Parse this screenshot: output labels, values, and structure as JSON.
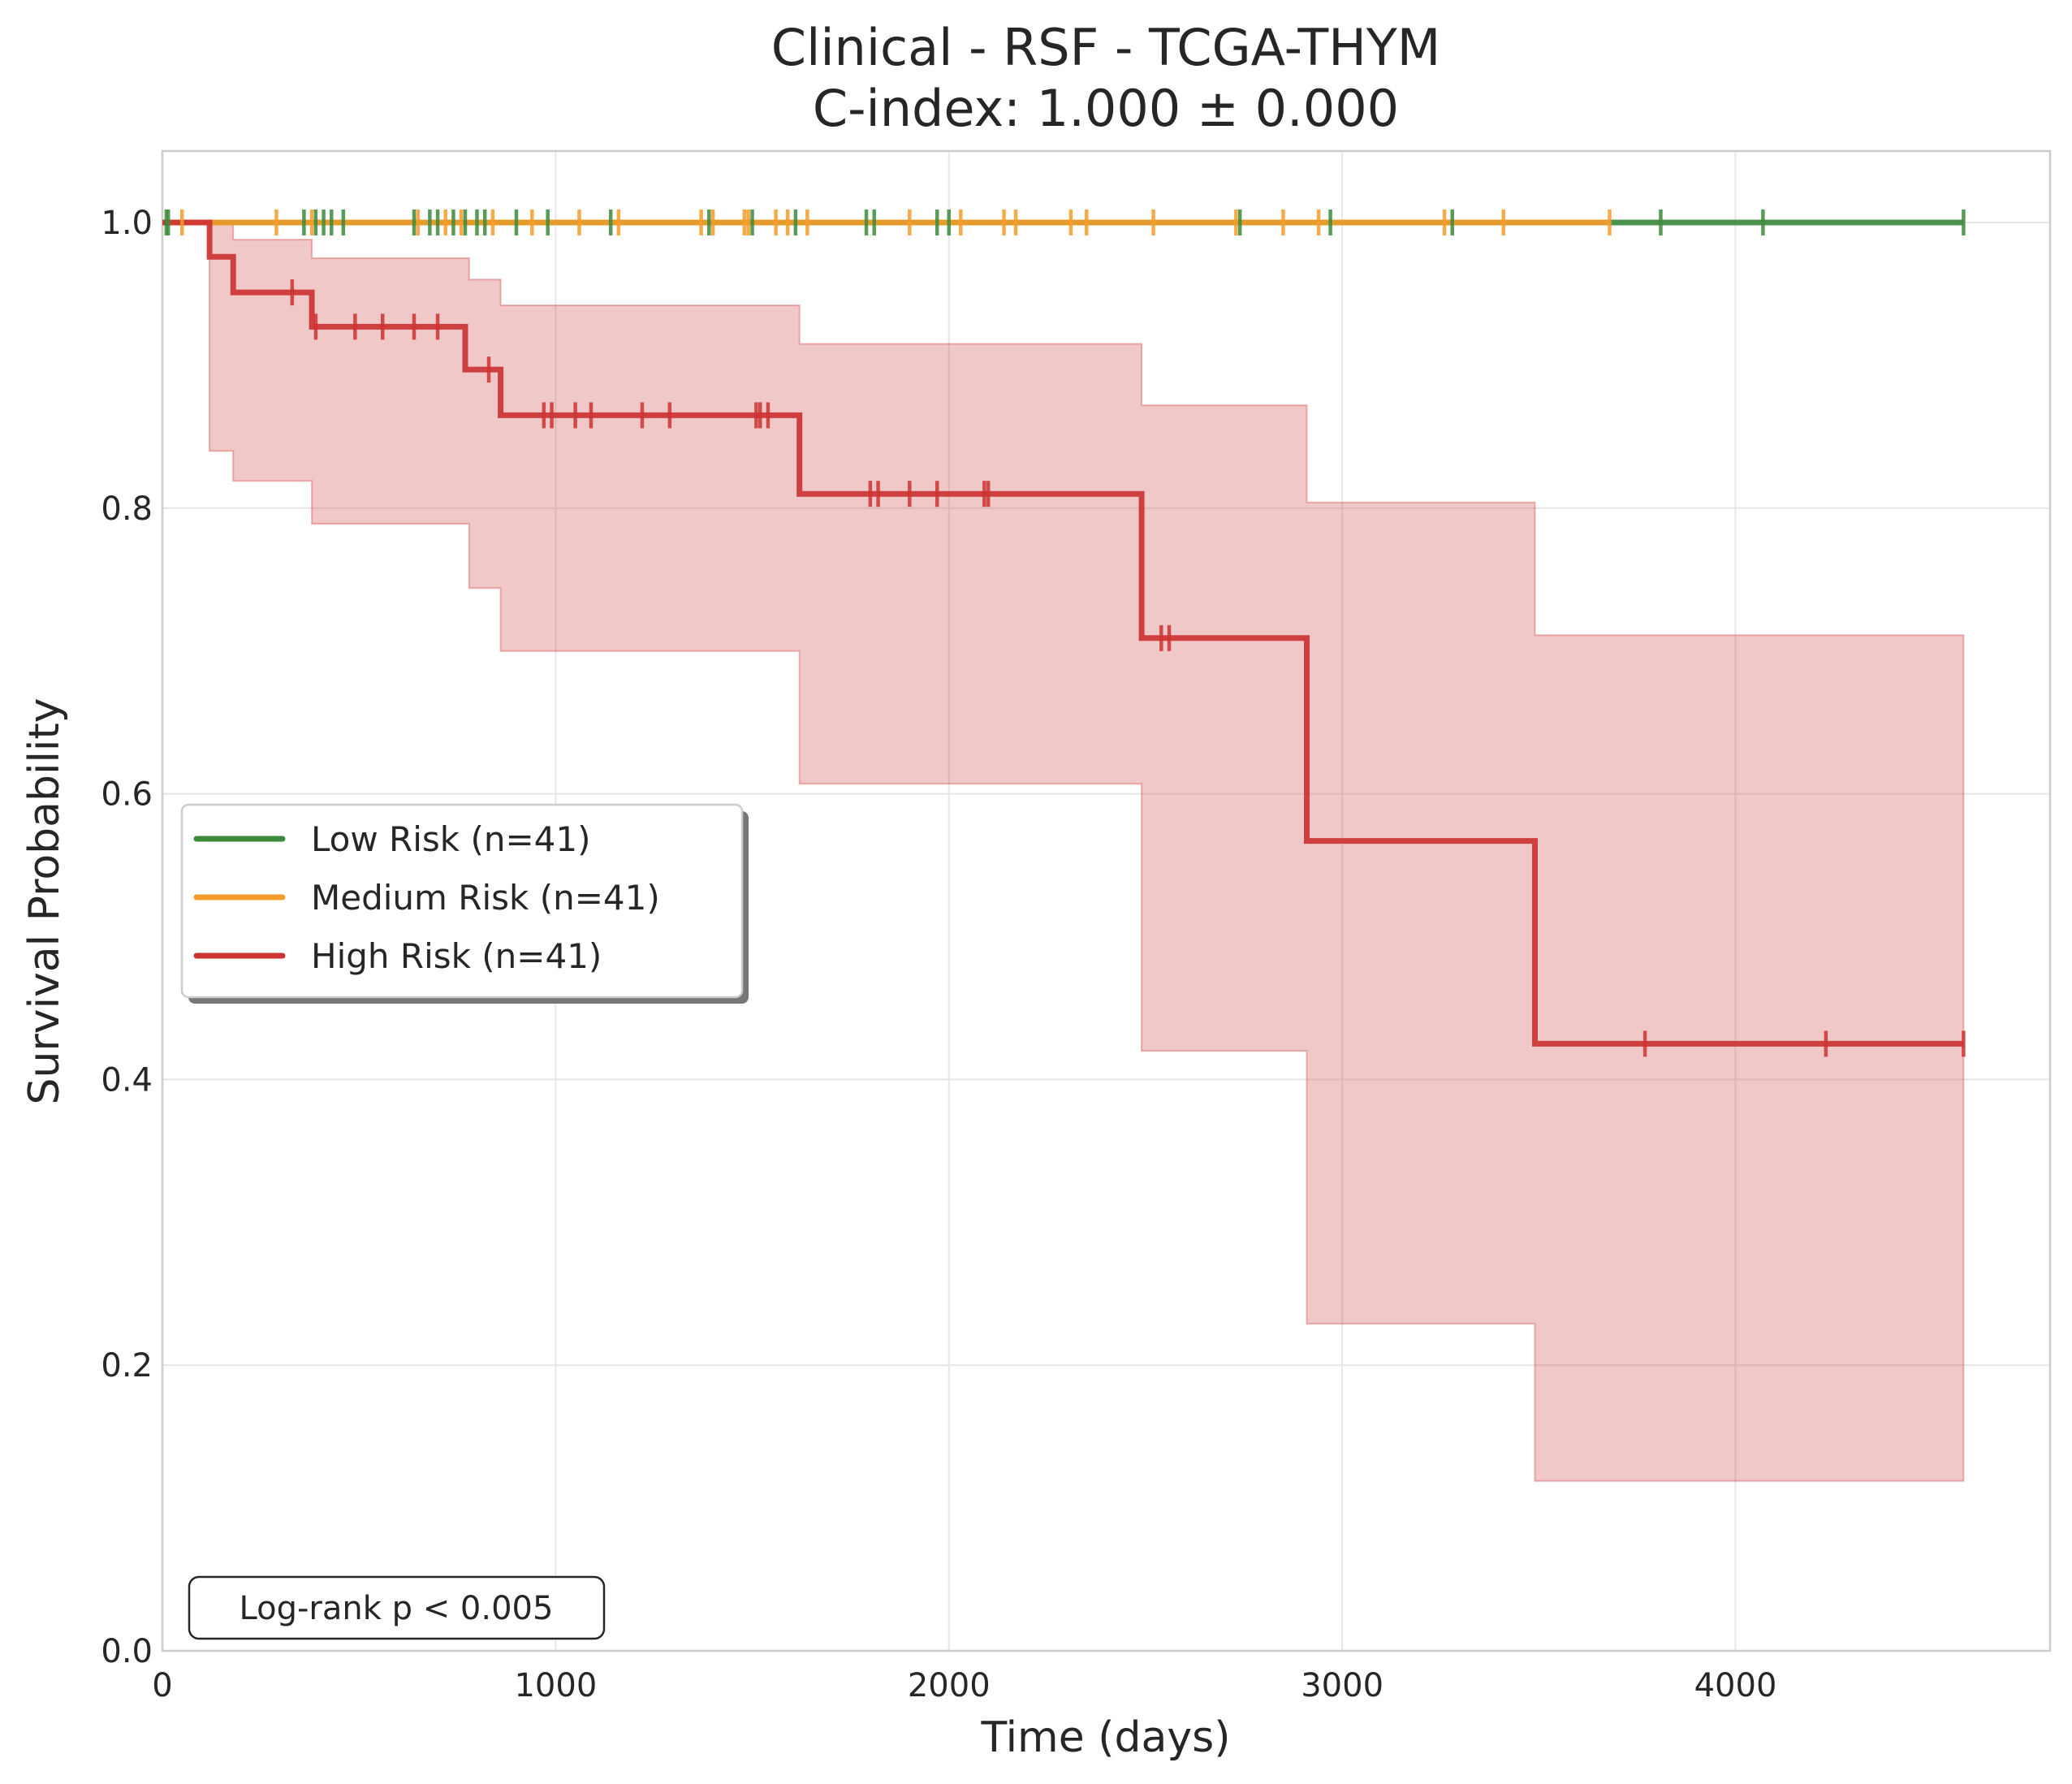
{
  "chart_data": {
    "type": "line",
    "subtype": "kaplan-meier",
    "title": "Clinical - RSF - TCGA-THYM",
    "subtitle": "C-index: 1.000 ± 0.000",
    "xlabel": "Time (days)",
    "ylabel": "Survival Probability",
    "xlim": [
      0,
      4800
    ],
    "ylim": [
      0,
      1.05
    ],
    "xticks": [
      0,
      1000,
      2000,
      3000,
      4000
    ],
    "xtick_labels": [
      "0",
      "1000",
      "2000",
      "3000",
      "4000"
    ],
    "yticks": [
      0.0,
      0.2,
      0.4,
      0.6,
      0.8,
      1.0
    ],
    "ytick_labels": [
      "0.0",
      "0.2",
      "0.4",
      "0.6",
      "0.8",
      "1.0"
    ],
    "grid": true,
    "legend_position": "center-left",
    "annotation": "Log-rank p < 0.005",
    "series": [
      {
        "name": "Low Risk (n=41)",
        "color": "#3d8a3d",
        "steps": [
          [
            0,
            1.0
          ],
          [
            4580,
            1.0
          ]
        ],
        "censor_times": [
          10,
          15,
          360,
          390,
          410,
          430,
          460,
          640,
          680,
          700,
          740,
          770,
          800,
          820,
          900,
          980,
          1140,
          1390,
          1500,
          1610,
          1790,
          1810,
          1970,
          2000,
          2740,
          2970,
          3280,
          3810,
          4070,
          4580
        ]
      },
      {
        "name": "Medium Risk (n=41)",
        "color": "#f39c2a",
        "steps": [
          [
            0,
            1.0
          ],
          [
            3680,
            1.0
          ]
        ],
        "censor_times": [
          50,
          290,
          380,
          650,
          720,
          760,
          840,
          940,
          1060,
          1160,
          1370,
          1400,
          1480,
          1490,
          1560,
          1590,
          1640,
          1900,
          2030,
          2140,
          2170,
          2310,
          2350,
          2520,
          2730,
          2850,
          2940,
          3260,
          3410,
          3680
        ]
      },
      {
        "name": "High Risk (n=41)",
        "color": "#cc3333",
        "steps": [
          [
            0,
            1.0
          ],
          [
            120,
            0.976
          ],
          [
            180,
            0.951
          ],
          [
            380,
            0.927
          ],
          [
            770,
            0.897
          ],
          [
            860,
            0.865
          ],
          [
            1620,
            0.81
          ],
          [
            2490,
            0.709
          ],
          [
            2910,
            0.567
          ],
          [
            3490,
            0.425
          ],
          [
            4580,
            0.425
          ]
        ],
        "ci_upper": [
          [
            0,
            1.0
          ],
          [
            120,
            1.0
          ],
          [
            180,
            0.988
          ],
          [
            380,
            0.975
          ],
          [
            780,
            0.96
          ],
          [
            860,
            0.942
          ],
          [
            1620,
            0.915
          ],
          [
            2490,
            0.872
          ],
          [
            2910,
            0.804
          ],
          [
            3490,
            0.711
          ],
          [
            4580,
            0.711
          ]
        ],
        "ci_lower": [
          [
            0,
            1.0
          ],
          [
            120,
            0.84
          ],
          [
            180,
            0.819
          ],
          [
            380,
            0.789
          ],
          [
            780,
            0.744
          ],
          [
            860,
            0.7
          ],
          [
            1620,
            0.607
          ],
          [
            2490,
            0.42
          ],
          [
            2910,
            0.229
          ],
          [
            3490,
            0.119
          ],
          [
            4580,
            0.119
          ]
        ],
        "censor_times": [
          330,
          390,
          490,
          560,
          640,
          700,
          830,
          970,
          990,
          1050,
          1090,
          1220,
          1290,
          1510,
          1520,
          1540,
          1800,
          1820,
          1900,
          1970,
          2090,
          2100,
          2540,
          2560,
          3770,
          4230,
          4580
        ]
      }
    ]
  }
}
